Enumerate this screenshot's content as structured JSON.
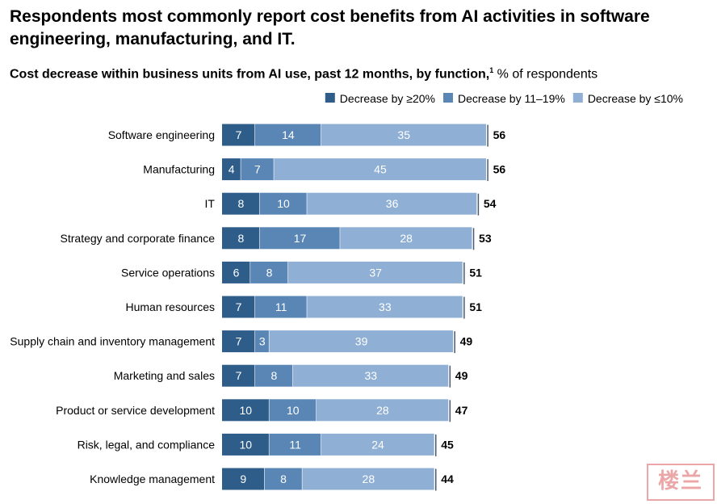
{
  "title": "Respondents most commonly report cost benefits from AI activities in software engineering, manufacturing, and IT.",
  "subtitle_bold": "Cost decrease within business units from AI use, past 12 months, by function,",
  "subtitle_footnote": "1",
  "subtitle_unit": " % of respondents",
  "watermark_text": "楼兰",
  "chart_data": {
    "type": "bar",
    "orientation": "horizontal",
    "stacked": true,
    "title": "Cost decrease within business units from AI use, past 12 months, by function",
    "xlabel": "% of respondents",
    "categories": [
      "Software engineering",
      "Manufacturing",
      "IT",
      "Strategy and corporate finance",
      "Service operations",
      "Human resources",
      "Supply chain and inventory management",
      "Marketing and sales",
      "Product or service development",
      "Risk, legal, and compliance",
      "Knowledge management"
    ],
    "series": [
      {
        "name": "Decrease by ≥20%",
        "color": "#2f5d8a",
        "values": [
          7,
          4,
          8,
          8,
          6,
          7,
          7,
          7,
          10,
          10,
          9
        ]
      },
      {
        "name": "Decrease by 11–19%",
        "color": "#5a86b6",
        "values": [
          14,
          7,
          10,
          17,
          8,
          11,
          3,
          8,
          10,
          11,
          8
        ]
      },
      {
        "name": "Decrease by ≤10%",
        "color": "#8fb0d4",
        "values": [
          35,
          45,
          36,
          28,
          37,
          33,
          39,
          33,
          28,
          24,
          28
        ]
      }
    ],
    "totals": [
      56,
      56,
      54,
      53,
      51,
      51,
      49,
      49,
      47,
      45,
      44
    ],
    "legend_position": "top-right",
    "grid": false
  }
}
